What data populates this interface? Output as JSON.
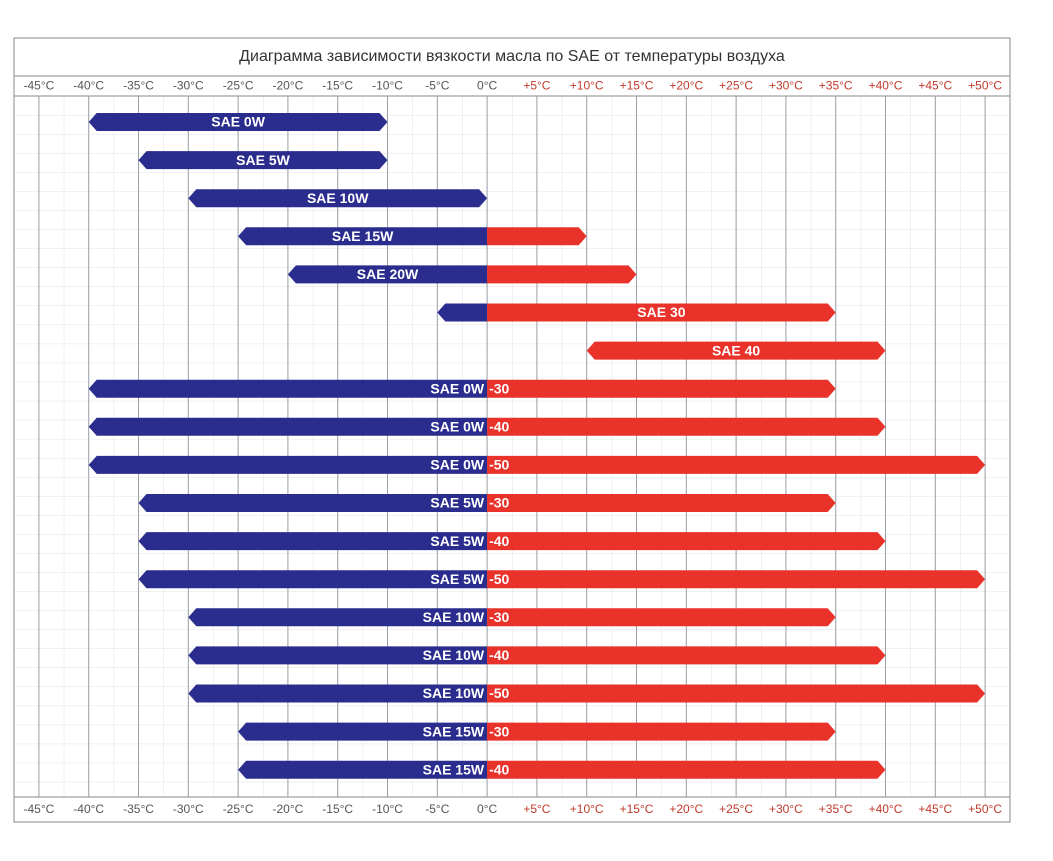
{
  "chart_data": {
    "type": "range-bar",
    "title": "Диаграмма зависимости вязкости масла по SAE от температуры воздуха",
    "labels": [
      [
        "SAE 0W"
      ],
      [
        "SAE 5W"
      ],
      [
        "SAE 10W"
      ],
      [
        "SAE 15W"
      ],
      [
        "SAE 20W"
      ],
      [
        "SAE 30"
      ],
      [
        "SAE 40"
      ],
      [
        "SAE 0W",
        "-30"
      ],
      [
        "SAE 0W",
        "-40"
      ],
      [
        "SAE 0W",
        "-50"
      ],
      [
        "SAE 5W",
        "-30"
      ],
      [
        "SAE 5W",
        "-40"
      ],
      [
        "SAE 5W",
        "-50"
      ],
      [
        "SAE 10W",
        "-30"
      ],
      [
        "SAE 10W",
        "-40"
      ],
      [
        "SAE 10W",
        "-50"
      ],
      [
        "SAE 15W",
        "-30"
      ],
      [
        "SAE 15W",
        "-40"
      ]
    ],
    "low": [
      -40,
      -35,
      -30,
      -25,
      -20,
      -5,
      10,
      -40,
      -40,
      -40,
      -35,
      -35,
      -35,
      -30,
      -30,
      -30,
      -25,
      -25
    ],
    "high": [
      -10,
      -10,
      0,
      10,
      15,
      35,
      40,
      35,
      40,
      50,
      35,
      40,
      50,
      35,
      40,
      50,
      35,
      40
    ],
    "cold_color": "#2b2d8e",
    "warm_color": "#e8322a",
    "tick_color_cold": "#555555",
    "tick_color_warm": "#c0392b",
    "xlim": [
      -47.5,
      52.5
    ],
    "xticks": [
      {
        "value": -45,
        "label": "-45°C"
      },
      {
        "value": -40,
        "label": "-40°C"
      },
      {
        "value": -35,
        "label": "-35°C"
      },
      {
        "value": -30,
        "label": "-30°C"
      },
      {
        "value": -25,
        "label": "-25°C"
      },
      {
        "value": -20,
        "label": "-20°C"
      },
      {
        "value": -15,
        "label": "-15°C"
      },
      {
        "value": -10,
        "label": "-10°C"
      },
      {
        "value": -5,
        "label": "-5°C"
      },
      {
        "value": 0,
        "label": "0°C"
      },
      {
        "value": 5,
        "label": "+5°C"
      },
      {
        "value": 10,
        "label": "+10°C"
      },
      {
        "value": 15,
        "label": "+15°C"
      },
      {
        "value": 20,
        "label": "+20°C"
      },
      {
        "value": 25,
        "label": "+25°C"
      },
      {
        "value": 30,
        "label": "+30°C"
      },
      {
        "value": 35,
        "label": "+35°C"
      },
      {
        "value": 40,
        "label": "+40°C"
      },
      {
        "value": 45,
        "label": "+45°C"
      },
      {
        "value": 50,
        "label": "+50°C"
      }
    ],
    "grid": true
  }
}
